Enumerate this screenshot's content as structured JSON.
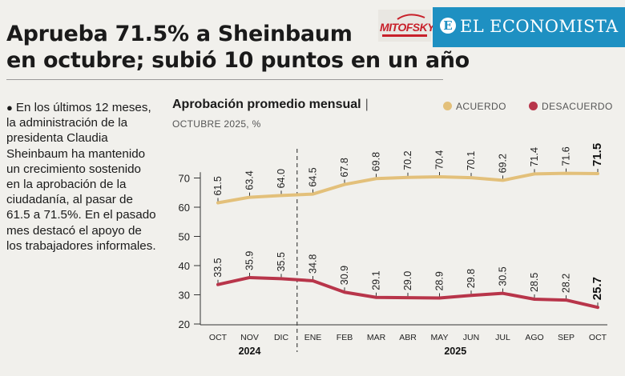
{
  "header": {
    "headline_line1": "Aprueba 71.5% a Sheinbaum",
    "headline_line2": "en octubre; subió 10 puntos en un año",
    "brand_name": "EL ECONOMISTA",
    "brand_initial": "E",
    "pollster_logo": "MITOFSKY",
    "brand_color": "#1e90c2"
  },
  "bullet": {
    "text": "En los últimos 12 meses, la administra­ción de la presidenta Claudia Sheinbaum ha mantenido un crecimiento sostenido en la aprobación de la ciudadanía, al pasar de 61.5 a 71.5%. En el pasado mes destacó el apoyo de los trabajado­res informales."
  },
  "chart_data": {
    "type": "line",
    "title": "Aprobación promedio mensual",
    "title_separator": "|",
    "subtitle": "OCTUBRE 2025, %",
    "categories": [
      "OCT",
      "NOV",
      "DIC",
      "ENE",
      "FEB",
      "MAR",
      "ABR",
      "MAY",
      "JUN",
      "JUL",
      "AGO",
      "SEP",
      "OCT"
    ],
    "year_groups": [
      {
        "label": "2024",
        "from": 0,
        "to": 2
      },
      {
        "label": "2025",
        "from": 3,
        "to": 12
      }
    ],
    "series": [
      {
        "name": "ACUERDO",
        "color": "#e3c07a",
        "values": [
          61.5,
          63.4,
          64.0,
          64.5,
          67.8,
          69.8,
          70.2,
          70.4,
          70.1,
          69.2,
          71.4,
          71.6,
          71.5
        ]
      },
      {
        "name": "DESACUERDO",
        "color": "#b8354a",
        "values": [
          33.5,
          35.9,
          35.5,
          34.8,
          30.9,
          29.1,
          29.0,
          28.9,
          29.8,
          30.5,
          28.5,
          28.2,
          25.7
        ]
      }
    ],
    "yticks": [
      20,
      30,
      40,
      50,
      60,
      70
    ],
    "ylim": [
      20,
      72
    ],
    "grid": false,
    "divider_between_years": true,
    "legend_position": "top-right"
  }
}
